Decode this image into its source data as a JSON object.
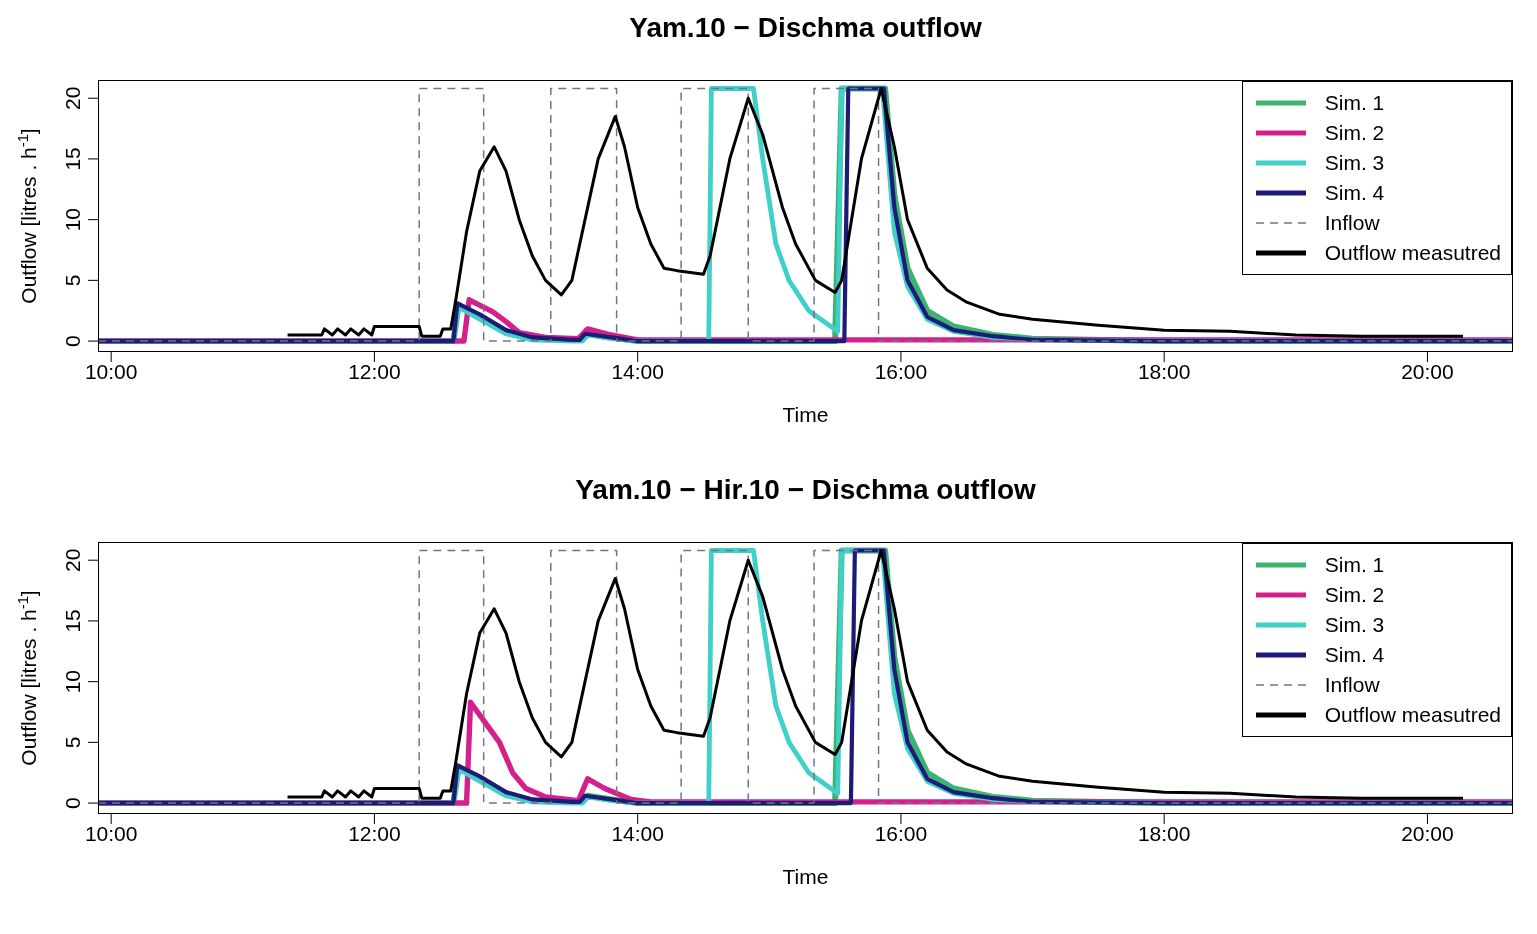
{
  "chart_data": [
    {
      "type": "line",
      "title": "Yam.10 − Dischma outflow",
      "xlabel": "Time",
      "ylabel": "Outflow [litres . h$^{-1}$]",
      "xlim": [
        9.9,
        20.65
      ],
      "ylim": [
        -0.9,
        21.5
      ],
      "xticks": [
        {
          "value": 10,
          "label": "10:00"
        },
        {
          "value": 12,
          "label": "12:00"
        },
        {
          "value": 14,
          "label": "14:00"
        },
        {
          "value": 16,
          "label": "16:00"
        },
        {
          "value": 18,
          "label": "18:00"
        },
        {
          "value": 20,
          "label": "20:00"
        }
      ],
      "yticks": [
        0,
        5,
        10,
        15,
        20
      ],
      "legend": "top right",
      "marker": "none",
      "series": [
        {
          "name": "Sim. 1",
          "color": "#3cb371",
          "x": [
            9.9,
            12.6,
            12.64,
            12.8,
            13.0,
            13.2,
            13.5,
            13.58,
            13.62,
            13.8,
            14.0,
            15.5,
            15.55,
            15.88,
            15.95,
            16.05,
            16.2,
            16.4,
            16.7,
            17.0,
            18.0,
            20.65
          ],
          "values": [
            0,
            0,
            3.0,
            2.0,
            0.8,
            0.2,
            0.1,
            0.1,
            0.6,
            0.3,
            0,
            0,
            20.8,
            20.8,
            12,
            6,
            2.5,
            1.2,
            0.5,
            0.2,
            0,
            0
          ]
        },
        {
          "name": "Sim. 2",
          "color": "#d4208c",
          "x": [
            9.9,
            12.68,
            12.72,
            12.9,
            13.0,
            13.1,
            13.3,
            13.55,
            13.62,
            13.8,
            14.0,
            20.65
          ],
          "values": [
            0,
            0,
            3.4,
            2.4,
            1.6,
            0.7,
            0.3,
            0.2,
            1.0,
            0.5,
            0.1,
            0.1
          ]
        },
        {
          "name": "Sim. 3",
          "color": "#40d0c8",
          "x": [
            9.9,
            12.6,
            12.64,
            12.8,
            13.0,
            13.2,
            13.5,
            13.58,
            13.62,
            13.8,
            14.0,
            14.54,
            14.56,
            14.88,
            14.95,
            15.05,
            15.15,
            15.3,
            15.52,
            15.55,
            15.86,
            15.95,
            16.05,
            16.2,
            16.4,
            16.7,
            17.0,
            18.0,
            20.65
          ],
          "values": [
            0,
            0,
            2.8,
            1.8,
            0.6,
            0.1,
            0,
            0,
            0.5,
            0.2,
            0,
            0,
            20.8,
            20.8,
            15,
            8,
            5,
            2.5,
            0.8,
            20.8,
            20.8,
            9,
            4.5,
            1.8,
            0.8,
            0.3,
            0.1,
            0,
            0
          ]
        },
        {
          "name": "Sim. 4",
          "color": "#1c1c78",
          "x": [
            9.9,
            12.6,
            12.63,
            12.8,
            13.0,
            13.2,
            13.5,
            13.56,
            13.6,
            13.8,
            14.0,
            15.57,
            15.6,
            15.87,
            15.95,
            16.05,
            16.2,
            16.4,
            16.7,
            17.0,
            18.0,
            20.65
          ],
          "values": [
            0,
            0,
            3.1,
            2.2,
            0.9,
            0.3,
            0.1,
            0.1,
            0.6,
            0.3,
            0,
            0,
            20.8,
            20.8,
            11,
            5,
            2,
            0.9,
            0.4,
            0.1,
            0,
            0
          ]
        },
        {
          "name": "Inflow",
          "color": "#6e7785",
          "line_style": "dashed",
          "x": [
            9.9,
            12.34,
            12.34,
            12.83,
            12.83,
            13.34,
            13.34,
            13.84,
            13.84,
            14.33,
            14.33,
            14.84,
            14.84,
            15.34,
            15.34,
            15.83,
            15.83,
            20.65
          ],
          "values": [
            0,
            0,
            20.8,
            20.8,
            0,
            0,
            20.8,
            20.8,
            0,
            0,
            20.8,
            20.8,
            0,
            0,
            20.8,
            20.8,
            0,
            0
          ]
        },
        {
          "name": "Outflow measutred",
          "color": "#000000",
          "x": [
            11.34,
            11.6,
            11.62,
            11.68,
            11.72,
            11.78,
            11.82,
            11.88,
            11.92,
            11.98,
            12.0,
            12.34,
            12.36,
            12.5,
            12.52,
            12.58,
            12.62,
            12.7,
            12.8,
            12.91,
            13.0,
            13.1,
            13.2,
            13.3,
            13.42,
            13.5,
            13.6,
            13.7,
            13.83,
            13.9,
            14.0,
            14.1,
            14.2,
            14.3,
            14.5,
            14.55,
            14.7,
            14.84,
            14.95,
            15.1,
            15.2,
            15.35,
            15.5,
            15.55,
            15.7,
            15.85,
            15.95,
            16.05,
            16.2,
            16.35,
            16.5,
            16.75,
            17.0,
            17.5,
            18.0,
            18.5,
            19.0,
            19.5,
            20.0,
            20.27
          ],
          "values": [
            0.5,
            0.5,
            1.0,
            0.5,
            1.0,
            0.5,
            1.0,
            0.5,
            1.0,
            0.5,
            1.2,
            1.2,
            0.4,
            0.4,
            1.0,
            1.0,
            3.5,
            9,
            14,
            16,
            14,
            10,
            7,
            5,
            3.8,
            5,
            10,
            15,
            18.5,
            16,
            11,
            8,
            6,
            5.8,
            5.5,
            7,
            15,
            20,
            17,
            11,
            8,
            5,
            4,
            5,
            15,
            20.8,
            16,
            10,
            6,
            4.2,
            3.2,
            2.2,
            1.8,
            1.3,
            0.9,
            0.8,
            0.5,
            0.4,
            0.4,
            0.4
          ]
        }
      ]
    },
    {
      "type": "line",
      "title": "Yam.10 − Hir.10 − Dischma outflow",
      "xlabel": "Time",
      "ylabel": "Outflow [litres . h$^{-1}$]",
      "xlim": [
        9.9,
        20.65
      ],
      "ylim": [
        -0.9,
        21.5
      ],
      "xticks": [
        {
          "value": 10,
          "label": "10:00"
        },
        {
          "value": 12,
          "label": "12:00"
        },
        {
          "value": 14,
          "label": "14:00"
        },
        {
          "value": 16,
          "label": "16:00"
        },
        {
          "value": 18,
          "label": "18:00"
        },
        {
          "value": 20,
          "label": "20:00"
        }
      ],
      "yticks": [
        0,
        5,
        10,
        15,
        20
      ],
      "legend": "top right",
      "marker": "none",
      "series": [
        {
          "name": "Sim. 1",
          "color": "#3cb371",
          "x": [
            9.9,
            12.6,
            12.64,
            12.8,
            13.0,
            13.2,
            13.5,
            13.58,
            13.62,
            13.8,
            14.0,
            15.5,
            15.55,
            15.88,
            15.95,
            16.05,
            16.2,
            16.4,
            16.7,
            17.0,
            18.0,
            20.65
          ],
          "values": [
            0,
            0,
            3.0,
            2.0,
            0.8,
            0.2,
            0.1,
            0.1,
            0.6,
            0.3,
            0,
            0,
            20.8,
            20.8,
            12,
            6,
            2.5,
            1.2,
            0.5,
            0.2,
            0,
            0
          ]
        },
        {
          "name": "Sim. 2",
          "color": "#d4208c",
          "x": [
            9.9,
            12.7,
            12.73,
            12.85,
            12.95,
            13.05,
            13.15,
            13.3,
            13.55,
            13.62,
            13.75,
            13.95,
            14.1,
            20.65
          ],
          "values": [
            0,
            0,
            8.3,
            6.5,
            5,
            2.5,
            1.2,
            0.5,
            0.2,
            2.0,
            1.2,
            0.3,
            0.1,
            0.1
          ]
        },
        {
          "name": "Sim. 3",
          "color": "#40d0c8",
          "x": [
            9.9,
            12.6,
            12.64,
            12.8,
            13.0,
            13.2,
            13.5,
            13.58,
            13.62,
            13.8,
            14.0,
            14.54,
            14.56,
            14.88,
            14.95,
            15.05,
            15.15,
            15.3,
            15.52,
            15.55,
            15.86,
            15.95,
            16.05,
            16.2,
            16.4,
            16.7,
            17.0,
            18.0,
            20.65
          ],
          "values": [
            0,
            0,
            2.8,
            1.8,
            0.6,
            0.1,
            0,
            0,
            0.5,
            0.2,
            0,
            0,
            20.8,
            20.8,
            15,
            8,
            5,
            2.5,
            0.8,
            20.8,
            20.8,
            9,
            4.5,
            1.8,
            0.8,
            0.3,
            0.1,
            0,
            0
          ]
        },
        {
          "name": "Sim. 4",
          "color": "#1c1c78",
          "x": [
            9.9,
            12.6,
            12.63,
            12.8,
            13.0,
            13.2,
            13.5,
            13.56,
            13.6,
            13.8,
            14.0,
            15.62,
            15.65,
            15.87,
            15.95,
            16.05,
            16.2,
            16.4,
            16.7,
            17.0,
            18.0,
            20.65
          ],
          "values": [
            0,
            0,
            3.1,
            2.2,
            0.9,
            0.3,
            0.1,
            0.1,
            0.6,
            0.3,
            0,
            0,
            20.8,
            20.8,
            11,
            5,
            2,
            0.9,
            0.4,
            0.1,
            0,
            0
          ]
        },
        {
          "name": "Inflow",
          "color": "#6e7785",
          "line_style": "dashed",
          "x": [
            9.9,
            12.34,
            12.34,
            12.83,
            12.83,
            13.34,
            13.34,
            13.84,
            13.84,
            14.33,
            14.33,
            14.84,
            14.84,
            15.34,
            15.34,
            15.83,
            15.83,
            20.65
          ],
          "values": [
            0,
            0,
            20.8,
            20.8,
            0,
            0,
            20.8,
            20.8,
            0,
            0,
            20.8,
            20.8,
            0,
            0,
            20.8,
            20.8,
            0,
            0
          ]
        },
        {
          "name": "Outflow measutred",
          "color": "#000000",
          "x": [
            11.34,
            11.6,
            11.62,
            11.68,
            11.72,
            11.78,
            11.82,
            11.88,
            11.92,
            11.98,
            12.0,
            12.34,
            12.36,
            12.5,
            12.52,
            12.58,
            12.62,
            12.7,
            12.8,
            12.91,
            13.0,
            13.1,
            13.2,
            13.3,
            13.42,
            13.5,
            13.6,
            13.7,
            13.83,
            13.9,
            14.0,
            14.1,
            14.2,
            14.3,
            14.5,
            14.55,
            14.7,
            14.84,
            14.95,
            15.1,
            15.2,
            15.35,
            15.5,
            15.55,
            15.7,
            15.85,
            15.95,
            16.05,
            16.2,
            16.35,
            16.5,
            16.75,
            17.0,
            17.5,
            18.0,
            18.5,
            19.0,
            19.5,
            20.0,
            20.27
          ],
          "values": [
            0.5,
            0.5,
            1.0,
            0.5,
            1.0,
            0.5,
            1.0,
            0.5,
            1.0,
            0.5,
            1.2,
            1.2,
            0.4,
            0.4,
            1.0,
            1.0,
            3.5,
            9,
            14,
            16,
            14,
            10,
            7,
            5,
            3.8,
            5,
            10,
            15,
            18.5,
            16,
            11,
            8,
            6,
            5.8,
            5.5,
            7,
            15,
            20,
            17,
            11,
            8,
            5,
            4,
            5,
            15,
            20.8,
            16,
            10,
            6,
            4.2,
            3.2,
            2.2,
            1.8,
            1.3,
            0.9,
            0.8,
            0.5,
            0.4,
            0.4,
            0.4
          ]
        }
      ]
    }
  ]
}
